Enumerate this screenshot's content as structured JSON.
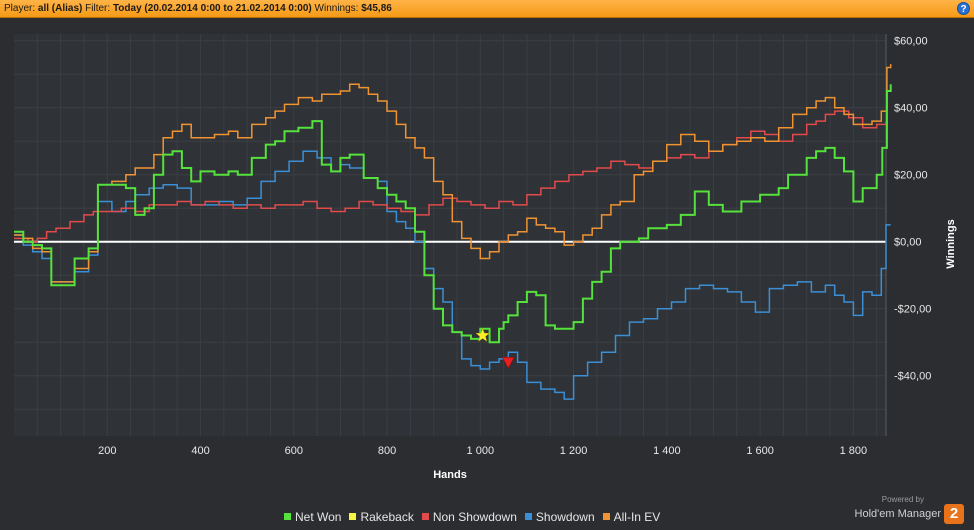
{
  "header": {
    "player_label": "Player:",
    "player_value": "all (Alias)",
    "filter_label": "Filter:",
    "filter_value": "Today (20.02.2014 0:00 to 21.02.2014 0:00)",
    "winnings_label": "Winnings:",
    "winnings_value": "$45,86",
    "help_icon": "?"
  },
  "branding": {
    "powered_by": "Powered by",
    "name": "Hold'em Manager",
    "logo_text": "2"
  },
  "chart_data": {
    "type": "line",
    "xlabel": "Hands",
    "ylabel": "Winnings",
    "xlim": [
      0,
      1870
    ],
    "ylim": [
      -58,
      62
    ],
    "x_ticks": [
      200,
      400,
      600,
      800,
      1000,
      1200,
      1400,
      1600,
      1800
    ],
    "x_tick_labels": [
      "200",
      "400",
      "600",
      "800",
      "1 000",
      "1 200",
      "1 400",
      "1 600",
      "1 800"
    ],
    "y_ticks": [
      -40,
      -20,
      0,
      20,
      40,
      60
    ],
    "y_tick_labels": [
      "-$40,00",
      "-$20,00",
      "$0,00",
      "$20,00",
      "$40,00",
      "$60,00"
    ],
    "y_axis_position": "right",
    "legend_position": "bottom",
    "grid": true,
    "series": [
      {
        "name": "Net Won",
        "color": "#55e23c",
        "points": [
          [
            0,
            3
          ],
          [
            20,
            0
          ],
          [
            40,
            -1
          ],
          [
            60,
            -2
          ],
          [
            80,
            -13
          ],
          [
            100,
            -13
          ],
          [
            130,
            -5
          ],
          [
            160,
            -2
          ],
          [
            180,
            17
          ],
          [
            210,
            17
          ],
          [
            240,
            16
          ],
          [
            260,
            8
          ],
          [
            280,
            10
          ],
          [
            300,
            20
          ],
          [
            320,
            26
          ],
          [
            340,
            27
          ],
          [
            360,
            22
          ],
          [
            380,
            18
          ],
          [
            400,
            21
          ],
          [
            430,
            20
          ],
          [
            460,
            21
          ],
          [
            480,
            20
          ],
          [
            510,
            25
          ],
          [
            540,
            29
          ],
          [
            560,
            30
          ],
          [
            580,
            33
          ],
          [
            610,
            34
          ],
          [
            640,
            36
          ],
          [
            660,
            23
          ],
          [
            680,
            21
          ],
          [
            700,
            25
          ],
          [
            720,
            26
          ],
          [
            750,
            19
          ],
          [
            780,
            16
          ],
          [
            800,
            14
          ],
          [
            820,
            12
          ],
          [
            840,
            10
          ],
          [
            860,
            3
          ],
          [
            880,
            -10
          ],
          [
            900,
            -20
          ],
          [
            920,
            -25
          ],
          [
            940,
            -27
          ],
          [
            960,
            -28
          ],
          [
            980,
            -29
          ],
          [
            1000,
            -26
          ],
          [
            1020,
            -30
          ],
          [
            1040,
            -26
          ],
          [
            1050,
            -24
          ],
          [
            1060,
            -22
          ],
          [
            1080,
            -18
          ],
          [
            1100,
            -15
          ],
          [
            1120,
            -16
          ],
          [
            1140,
            -25
          ],
          [
            1160,
            -26
          ],
          [
            1180,
            -26
          ],
          [
            1200,
            -24
          ],
          [
            1220,
            -17
          ],
          [
            1240,
            -12
          ],
          [
            1260,
            -9
          ],
          [
            1280,
            -2
          ],
          [
            1300,
            0
          ],
          [
            1340,
            1
          ],
          [
            1360,
            4
          ],
          [
            1400,
            5
          ],
          [
            1430,
            8
          ],
          [
            1460,
            15
          ],
          [
            1490,
            11
          ],
          [
            1520,
            9
          ],
          [
            1560,
            12
          ],
          [
            1600,
            14
          ],
          [
            1640,
            16
          ],
          [
            1660,
            20
          ],
          [
            1700,
            25
          ],
          [
            1720,
            27
          ],
          [
            1740,
            28
          ],
          [
            1760,
            25
          ],
          [
            1780,
            21
          ],
          [
            1800,
            12
          ],
          [
            1820,
            16
          ],
          [
            1850,
            20
          ],
          [
            1862,
            28
          ],
          [
            1872,
            45
          ],
          [
            1880,
            47
          ]
        ]
      },
      {
        "name": "Rakeback",
        "color": "#f5f542",
        "points": []
      },
      {
        "name": "Non Showdown",
        "color": "#e14b4b",
        "points": [
          [
            0,
            1
          ],
          [
            30,
            0
          ],
          [
            50,
            1
          ],
          [
            70,
            3
          ],
          [
            90,
            4
          ],
          [
            120,
            6
          ],
          [
            150,
            8
          ],
          [
            170,
            9
          ],
          [
            200,
            9
          ],
          [
            230,
            10
          ],
          [
            260,
            9
          ],
          [
            290,
            11
          ],
          [
            320,
            11
          ],
          [
            350,
            12
          ],
          [
            380,
            11
          ],
          [
            410,
            12
          ],
          [
            440,
            11
          ],
          [
            470,
            10
          ],
          [
            500,
            11
          ],
          [
            530,
            10
          ],
          [
            560,
            11
          ],
          [
            590,
            11
          ],
          [
            620,
            12
          ],
          [
            650,
            10
          ],
          [
            680,
            9
          ],
          [
            710,
            10
          ],
          [
            740,
            12
          ],
          [
            770,
            11
          ],
          [
            800,
            10
          ],
          [
            830,
            9
          ],
          [
            860,
            8
          ],
          [
            890,
            11
          ],
          [
            920,
            13
          ],
          [
            950,
            12
          ],
          [
            980,
            11
          ],
          [
            1010,
            10
          ],
          [
            1040,
            12
          ],
          [
            1070,
            11
          ],
          [
            1100,
            14
          ],
          [
            1130,
            16
          ],
          [
            1160,
            18
          ],
          [
            1190,
            20
          ],
          [
            1220,
            21
          ],
          [
            1250,
            22
          ],
          [
            1280,
            24
          ],
          [
            1310,
            23
          ],
          [
            1340,
            22
          ],
          [
            1370,
            24
          ],
          [
            1400,
            25
          ],
          [
            1430,
            26
          ],
          [
            1460,
            25
          ],
          [
            1490,
            27
          ],
          [
            1520,
            29
          ],
          [
            1550,
            31
          ],
          [
            1580,
            33
          ],
          [
            1610,
            32
          ],
          [
            1640,
            30
          ],
          [
            1670,
            32
          ],
          [
            1700,
            35
          ],
          [
            1720,
            36
          ],
          [
            1740,
            38
          ],
          [
            1760,
            39
          ],
          [
            1790,
            37
          ],
          [
            1820,
            34
          ],
          [
            1850,
            35
          ],
          [
            1870,
            36
          ]
        ]
      },
      {
        "name": "Showdown",
        "color": "#3b8fd6",
        "points": [
          [
            0,
            2
          ],
          [
            20,
            -1
          ],
          [
            40,
            -3
          ],
          [
            60,
            -5
          ],
          [
            80,
            -12
          ],
          [
            100,
            -12
          ],
          [
            130,
            -9
          ],
          [
            160,
            -4
          ],
          [
            180,
            12
          ],
          [
            210,
            9
          ],
          [
            240,
            12
          ],
          [
            260,
            14
          ],
          [
            290,
            16
          ],
          [
            320,
            17
          ],
          [
            350,
            16
          ],
          [
            380,
            11
          ],
          [
            410,
            11
          ],
          [
            440,
            12
          ],
          [
            470,
            11
          ],
          [
            500,
            13
          ],
          [
            530,
            18
          ],
          [
            560,
            21
          ],
          [
            590,
            24
          ],
          [
            620,
            27
          ],
          [
            650,
            25
          ],
          [
            680,
            21
          ],
          [
            700,
            23
          ],
          [
            720,
            22
          ],
          [
            750,
            19
          ],
          [
            780,
            18
          ],
          [
            800,
            9
          ],
          [
            820,
            6
          ],
          [
            840,
            4
          ],
          [
            860,
            0
          ],
          [
            880,
            -8
          ],
          [
            900,
            -14
          ],
          [
            920,
            -18
          ],
          [
            940,
            -27
          ],
          [
            960,
            -35
          ],
          [
            980,
            -37
          ],
          [
            1000,
            -38
          ],
          [
            1020,
            -36
          ],
          [
            1040,
            -35
          ],
          [
            1060,
            -33
          ],
          [
            1080,
            -36
          ],
          [
            1100,
            -42
          ],
          [
            1130,
            -44
          ],
          [
            1160,
            -45
          ],
          [
            1180,
            -47
          ],
          [
            1200,
            -40
          ],
          [
            1230,
            -36
          ],
          [
            1260,
            -33
          ],
          [
            1290,
            -28
          ],
          [
            1320,
            -24
          ],
          [
            1350,
            -23
          ],
          [
            1380,
            -20
          ],
          [
            1410,
            -18
          ],
          [
            1440,
            -14
          ],
          [
            1470,
            -13
          ],
          [
            1500,
            -14
          ],
          [
            1530,
            -15
          ],
          [
            1560,
            -18
          ],
          [
            1590,
            -21
          ],
          [
            1620,
            -14
          ],
          [
            1650,
            -13
          ],
          [
            1680,
            -12
          ],
          [
            1710,
            -15
          ],
          [
            1740,
            -13
          ],
          [
            1760,
            -16
          ],
          [
            1780,
            -18
          ],
          [
            1800,
            -22
          ],
          [
            1820,
            -15
          ],
          [
            1840,
            -16
          ],
          [
            1860,
            -8
          ],
          [
            1870,
            5
          ],
          [
            1880,
            5
          ]
        ]
      },
      {
        "name": "All-In EV",
        "color": "#f09433",
        "points": [
          [
            0,
            2
          ],
          [
            20,
            1
          ],
          [
            40,
            -2
          ],
          [
            60,
            -3
          ],
          [
            80,
            -12
          ],
          [
            100,
            -12
          ],
          [
            130,
            -8
          ],
          [
            160,
            -3
          ],
          [
            180,
            17
          ],
          [
            210,
            18
          ],
          [
            240,
            20
          ],
          [
            260,
            22
          ],
          [
            280,
            22
          ],
          [
            300,
            26
          ],
          [
            320,
            31
          ],
          [
            340,
            33
          ],
          [
            360,
            35
          ],
          [
            380,
            31
          ],
          [
            400,
            31
          ],
          [
            430,
            32
          ],
          [
            460,
            33
          ],
          [
            480,
            31
          ],
          [
            510,
            35
          ],
          [
            540,
            37
          ],
          [
            560,
            39
          ],
          [
            580,
            41
          ],
          [
            610,
            43
          ],
          [
            640,
            42
          ],
          [
            660,
            44
          ],
          [
            680,
            44
          ],
          [
            700,
            45
          ],
          [
            720,
            47
          ],
          [
            740,
            46
          ],
          [
            760,
            44
          ],
          [
            780,
            42
          ],
          [
            800,
            39
          ],
          [
            820,
            35
          ],
          [
            840,
            31
          ],
          [
            860,
            28
          ],
          [
            880,
            25
          ],
          [
            900,
            18
          ],
          [
            920,
            14
          ],
          [
            940,
            6
          ],
          [
            960,
            1
          ],
          [
            980,
            -2
          ],
          [
            1000,
            -5
          ],
          [
            1020,
            -3
          ],
          [
            1040,
            0
          ],
          [
            1060,
            2
          ],
          [
            1080,
            3
          ],
          [
            1100,
            7
          ],
          [
            1120,
            5
          ],
          [
            1140,
            4
          ],
          [
            1160,
            3
          ],
          [
            1180,
            -1
          ],
          [
            1200,
            0
          ],
          [
            1220,
            2
          ],
          [
            1240,
            4
          ],
          [
            1260,
            8
          ],
          [
            1280,
            11
          ],
          [
            1300,
            12
          ],
          [
            1330,
            20
          ],
          [
            1350,
            21
          ],
          [
            1370,
            24
          ],
          [
            1400,
            29
          ],
          [
            1430,
            32
          ],
          [
            1460,
            30
          ],
          [
            1490,
            27
          ],
          [
            1520,
            29
          ],
          [
            1550,
            30
          ],
          [
            1580,
            31
          ],
          [
            1610,
            30
          ],
          [
            1640,
            34
          ],
          [
            1670,
            38
          ],
          [
            1700,
            40
          ],
          [
            1720,
            42
          ],
          [
            1740,
            43
          ],
          [
            1760,
            40
          ],
          [
            1780,
            38
          ],
          [
            1800,
            35
          ],
          [
            1820,
            35
          ],
          [
            1840,
            36
          ],
          [
            1860,
            39
          ],
          [
            1872,
            52
          ],
          [
            1880,
            53
          ]
        ]
      }
    ],
    "markers": [
      {
        "type": "star",
        "color": "#ffee2a",
        "x": 1005,
        "y": -28
      },
      {
        "type": "down-triangle",
        "color": "#e52020",
        "x": 1060,
        "y": -36
      }
    ]
  }
}
